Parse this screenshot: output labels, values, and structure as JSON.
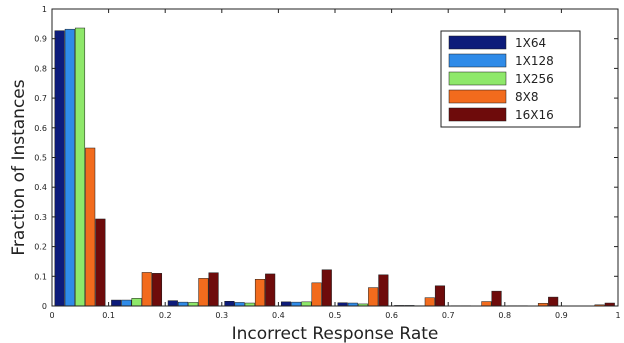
{
  "chart_data": {
    "type": "bar",
    "title": "",
    "xlabel": "Incorrect Response Rate",
    "ylabel": "Fraction of Instances",
    "xlim": [
      0,
      1
    ],
    "ylim": [
      0,
      1
    ],
    "x_ticks": [
      "0",
      "0.1",
      "0.2",
      "0.3",
      "0.4",
      "0.5",
      "0.6",
      "0.7",
      "0.8",
      "0.9",
      "1"
    ],
    "y_ticks": [
      "0",
      "0.1",
      "0.2",
      "0.3",
      "0.4",
      "0.5",
      "0.6",
      "0.7",
      "0.8",
      "0.9",
      "1"
    ],
    "grid": false,
    "legend_position": "top-right",
    "x": [
      0.05,
      0.15,
      0.25,
      0.35,
      0.45,
      0.55,
      0.65,
      0.75,
      0.85,
      0.95
    ],
    "series": [
      {
        "name": "1X64",
        "color": "#0d1b7a",
        "values": [
          0.927,
          0.02,
          0.018,
          0.016,
          0.014,
          0.011,
          0.002,
          0.001,
          0.001,
          0.0
        ]
      },
      {
        "name": "1X128",
        "color": "#2f8be8",
        "values": [
          0.932,
          0.02,
          0.013,
          0.012,
          0.013,
          0.01,
          0.002,
          0.001,
          0.001,
          0.0
        ]
      },
      {
        "name": "1X256",
        "color": "#8ee86a",
        "values": [
          0.936,
          0.026,
          0.012,
          0.01,
          0.014,
          0.007,
          0.001,
          0.0,
          0.0,
          0.0
        ]
      },
      {
        "name": "8X8",
        "color": "#f26b1d",
        "values": [
          0.532,
          0.113,
          0.093,
          0.09,
          0.078,
          0.062,
          0.028,
          0.015,
          0.009,
          0.004
        ]
      },
      {
        "name": "16X16",
        "color": "#6e0b0b",
        "values": [
          0.293,
          0.11,
          0.112,
          0.108,
          0.122,
          0.105,
          0.068,
          0.05,
          0.03,
          0.01
        ]
      }
    ]
  }
}
